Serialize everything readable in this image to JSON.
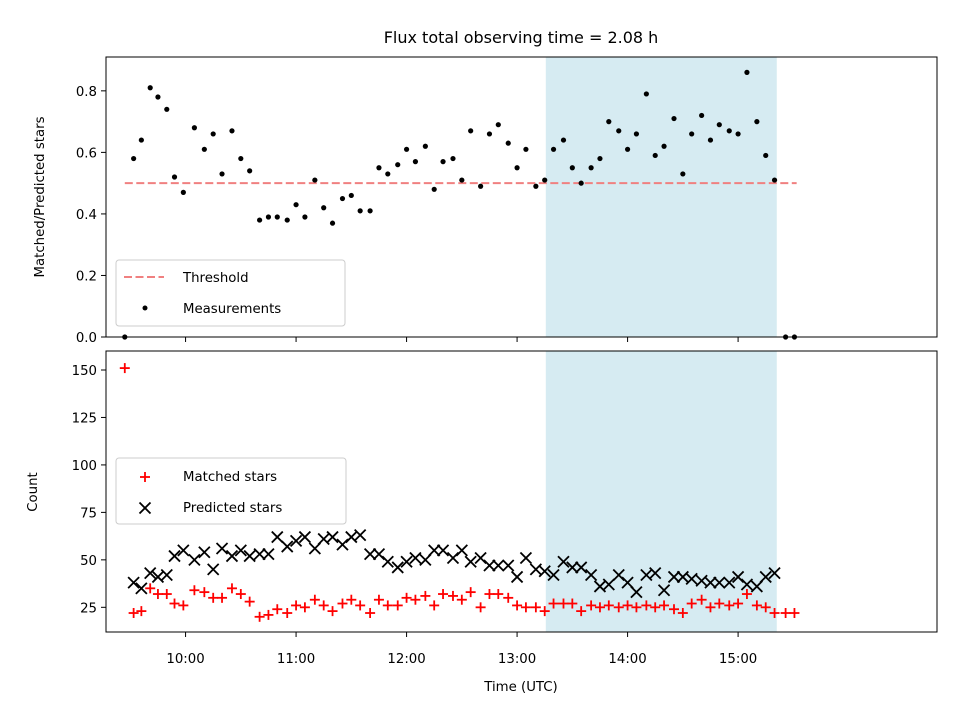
{
  "title": "Flux total observing time = 2.08 h",
  "xlabel": "Time (UTC)",
  "colors": {
    "threshold": "#f08080",
    "measurements": "#000000",
    "matched": "#ff0000",
    "predicted": "#000000",
    "shade": "#add8e6"
  },
  "chart_data": [
    {
      "type": "scatter",
      "ylabel": "Matched/Predicted stars",
      "ylim": [
        0,
        0.91
      ],
      "yticks": [
        "0.0",
        "0.2",
        "0.4",
        "0.6",
        "0.8"
      ],
      "xticks": [
        "10:00",
        "11:00",
        "12:00",
        "13:00",
        "14:00",
        "15:00"
      ],
      "xlim_hours": [
        9.28,
        16.8
      ],
      "shaded_range_hours": [
        13.26,
        15.35
      ],
      "legend": {
        "placement": "lower-left",
        "threshold_label": "Threshold",
        "measurements_label": "Measurements"
      },
      "threshold": {
        "value": 0.5,
        "x_range_hours": [
          9.45,
          15.53
        ]
      },
      "series": [
        {
          "name": "Measurements",
          "x_hours": [
            9.45,
            9.53,
            9.6,
            9.68,
            9.75,
            9.83,
            9.9,
            9.98,
            10.08,
            10.17,
            10.25,
            10.33,
            10.42,
            10.5,
            10.58,
            10.67,
            10.75,
            10.83,
            10.92,
            11.0,
            11.08,
            11.17,
            11.25,
            11.33,
            11.42,
            11.5,
            11.58,
            11.67,
            11.75,
            11.83,
            11.92,
            12.0,
            12.08,
            12.17,
            12.25,
            12.33,
            12.42,
            12.5,
            12.58,
            12.67,
            12.75,
            12.83,
            12.92,
            13.0,
            13.08,
            13.17,
            13.25,
            13.33,
            13.42,
            13.5,
            13.58,
            13.67,
            13.75,
            13.83,
            13.92,
            14.0,
            14.08,
            14.17,
            14.25,
            14.33,
            14.42,
            14.5,
            14.58,
            14.67,
            14.75,
            14.83,
            14.92,
            15.0,
            15.08,
            15.17,
            15.25,
            15.33,
            15.43,
            15.51
          ],
          "y": [
            0.0,
            0.58,
            0.64,
            0.81,
            0.78,
            0.74,
            0.52,
            0.47,
            0.68,
            0.61,
            0.66,
            0.53,
            0.67,
            0.58,
            0.54,
            0.38,
            0.39,
            0.39,
            0.38,
            0.43,
            0.39,
            0.51,
            0.42,
            0.37,
            0.45,
            0.46,
            0.41,
            0.41,
            0.55,
            0.53,
            0.56,
            0.61,
            0.57,
            0.62,
            0.48,
            0.57,
            0.58,
            0.51,
            0.67,
            0.49,
            0.66,
            0.69,
            0.63,
            0.55,
            0.61,
            0.49,
            0.51,
            0.61,
            0.64,
            0.55,
            0.5,
            0.55,
            0.58,
            0.7,
            0.67,
            0.61,
            0.66,
            0.79,
            0.59,
            0.62,
            0.71,
            0.53,
            0.66,
            0.72,
            0.64,
            0.69,
            0.67,
            0.66,
            0.86,
            0.7,
            0.59,
            0.51,
            0.0,
            0.0
          ]
        }
      ]
    },
    {
      "type": "scatter",
      "ylabel": "Count",
      "ylim": [
        12,
        160
      ],
      "yticks": [
        "25",
        "50",
        "75",
        "100",
        "125",
        "150"
      ],
      "xticks": [
        "10:00",
        "11:00",
        "12:00",
        "13:00",
        "14:00",
        "15:00"
      ],
      "xlim_hours": [
        9.28,
        16.8
      ],
      "shaded_range_hours": [
        13.26,
        15.35
      ],
      "legend": {
        "placement": "center-left",
        "matched_label": "Matched stars",
        "predicted_label": "Predicted stars"
      },
      "series": [
        {
          "name": "Matched stars",
          "x_hours": [
            9.45,
            9.53,
            9.6,
            9.68,
            9.75,
            9.83,
            9.9,
            9.98,
            10.08,
            10.17,
            10.25,
            10.33,
            10.42,
            10.5,
            10.58,
            10.67,
            10.75,
            10.83,
            10.92,
            11.0,
            11.08,
            11.17,
            11.25,
            11.33,
            11.42,
            11.5,
            11.58,
            11.67,
            11.75,
            11.83,
            11.92,
            12.0,
            12.08,
            12.17,
            12.25,
            12.33,
            12.42,
            12.5,
            12.58,
            12.67,
            12.75,
            12.83,
            12.92,
            13.0,
            13.08,
            13.17,
            13.25,
            13.33,
            13.42,
            13.5,
            13.58,
            13.67,
            13.75,
            13.83,
            13.92,
            14.0,
            14.08,
            14.17,
            14.25,
            14.33,
            14.42,
            14.5,
            14.58,
            14.67,
            14.75,
            14.83,
            14.92,
            15.0,
            15.08,
            15.17,
            15.25,
            15.33,
            15.43,
            15.51
          ],
          "y": [
            151,
            22,
            23,
            35,
            32,
            32,
            27,
            26,
            34,
            33,
            30,
            30,
            35,
            32,
            28,
            20,
            21,
            24,
            22,
            26,
            25,
            29,
            26,
            23,
            27,
            29,
            26,
            22,
            29,
            26,
            26,
            30,
            29,
            31,
            26,
            32,
            31,
            29,
            33,
            25,
            32,
            32,
            30,
            26,
            25,
            25,
            23,
            27,
            27,
            27,
            23,
            26,
            25,
            26,
            25,
            26,
            25,
            26,
            25,
            26,
            24,
            22,
            27,
            29,
            25,
            27,
            26,
            27,
            32,
            26,
            25,
            22,
            22,
            22
          ]
        },
        {
          "name": "Predicted stars",
          "x_hours": [
            9.53,
            9.6,
            9.68,
            9.75,
            9.83,
            9.9,
            9.98,
            10.08,
            10.17,
            10.25,
            10.33,
            10.42,
            10.5,
            10.58,
            10.67,
            10.75,
            10.83,
            10.92,
            11.0,
            11.08,
            11.17,
            11.25,
            11.33,
            11.42,
            11.5,
            11.58,
            11.67,
            11.75,
            11.83,
            11.92,
            12.0,
            12.08,
            12.17,
            12.25,
            12.33,
            12.42,
            12.5,
            12.58,
            12.67,
            12.75,
            12.83,
            12.92,
            13.0,
            13.08,
            13.17,
            13.25,
            13.33,
            13.42,
            13.5,
            13.58,
            13.67,
            13.75,
            13.83,
            13.92,
            14.0,
            14.08,
            14.17,
            14.25,
            14.33,
            14.42,
            14.5,
            14.58,
            14.67,
            14.75,
            14.83,
            14.92,
            15.0,
            15.08,
            15.17,
            15.25,
            15.33
          ],
          "y": [
            38,
            35,
            43,
            41,
            42,
            52,
            55,
            50,
            54,
            45,
            56,
            52,
            55,
            52,
            53,
            53,
            62,
            57,
            60,
            62,
            56,
            61,
            62,
            58,
            62,
            63,
            53,
            53,
            49,
            46,
            49,
            51,
            50,
            55,
            55,
            51,
            55,
            49,
            51,
            47,
            47,
            47,
            41,
            51,
            45,
            44,
            42,
            49,
            46,
            46,
            42,
            36,
            37,
            42,
            38,
            33,
            42,
            43,
            34,
            41,
            41,
            40,
            39,
            38,
            38,
            38,
            41,
            37,
            36,
            41,
            43
          ]
        }
      ]
    }
  ]
}
